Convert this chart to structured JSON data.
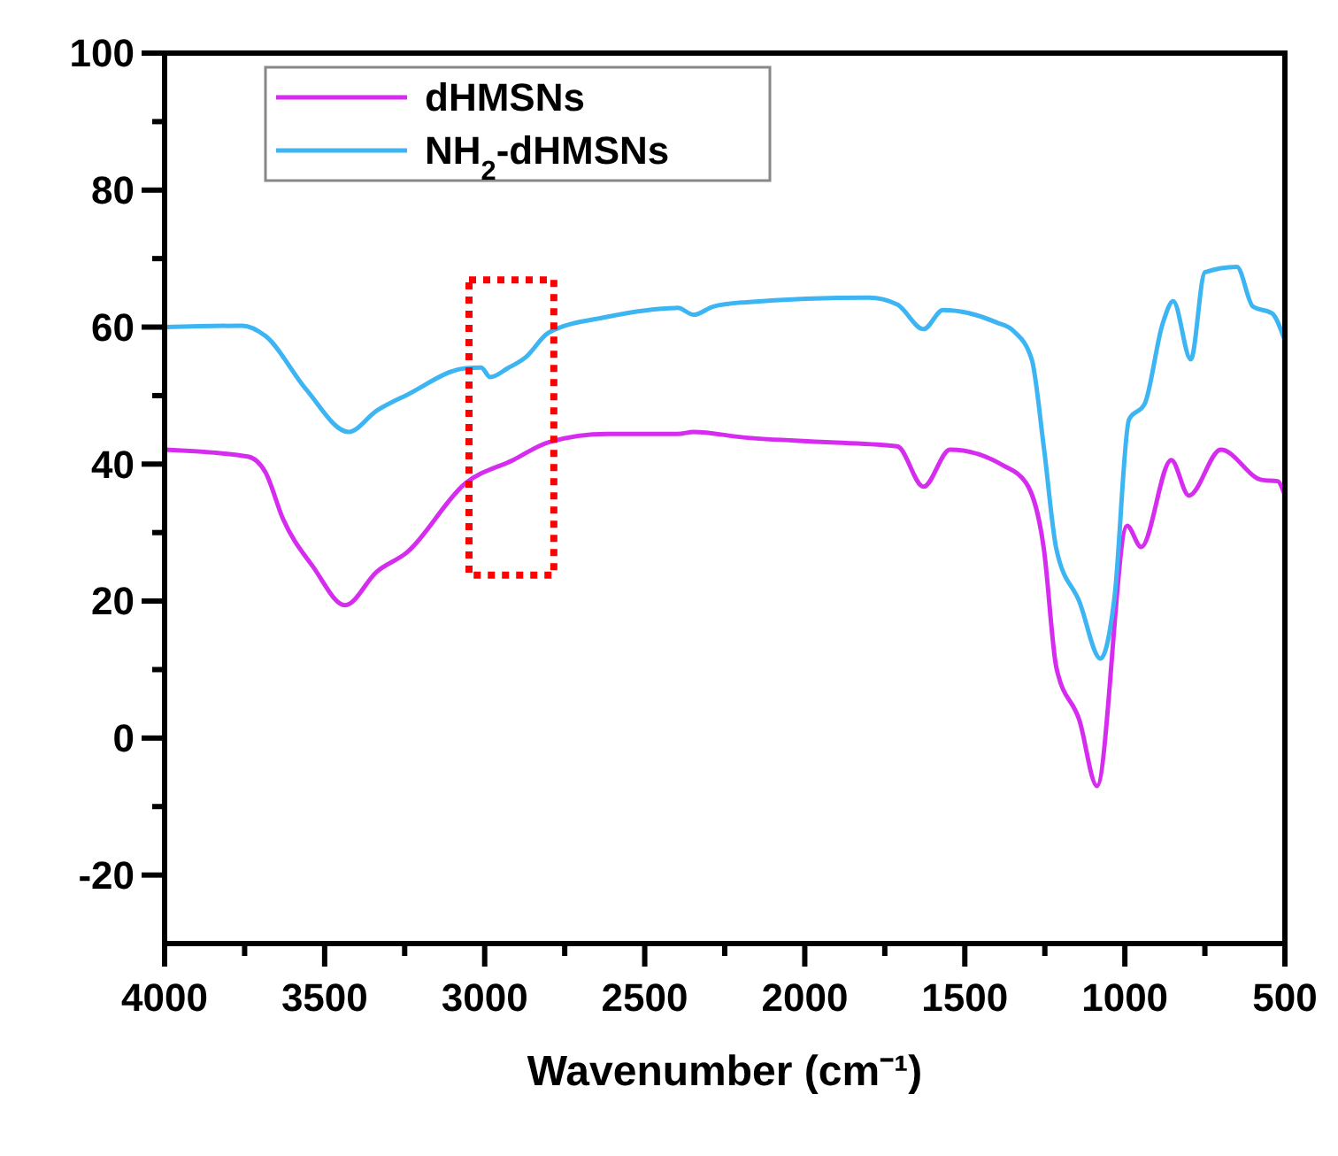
{
  "chart_data": {
    "type": "line",
    "xlabel": "Wavenumber (cm⁻¹)",
    "xlim": [
      4000,
      500
    ],
    "ylim": [
      -30,
      100
    ],
    "xticks": [
      4000,
      {
        "value": 3750,
        "label": null
      },
      3500,
      {
        "value": 3250,
        "label": null
      },
      3000,
      {
        "value": 2750,
        "label": null
      },
      2500,
      {
        "value": 2250,
        "label": null
      },
      2000,
      {
        "value": 1750,
        "label": null
      },
      1500,
      {
        "value": 1250,
        "label": null
      },
      1000,
      {
        "value": 750,
        "label": null
      },
      500
    ],
    "yticks": [
      {
        "value": -10,
        "label": null
      },
      -20,
      0,
      {
        "value": 10,
        "label": null
      },
      20,
      {
        "value": 30,
        "label": null
      },
      40,
      {
        "value": 50,
        "label": null
      },
      60,
      {
        "value": 70,
        "label": null
      },
      80,
      {
        "value": 90,
        "label": null
      },
      100
    ],
    "grid": false,
    "legend": "top left",
    "marker": "none",
    "line_style": "solid",
    "series": [
      {
        "name": "dHMSNs",
        "color": "#d62cf0",
        "x": [
          4000,
          3740,
          3685,
          3630,
          3536,
          3436,
          3337,
          3243,
          3060,
          2911,
          2800,
          2618,
          2397,
          2347,
          2192,
          1933,
          1711,
          1629,
          1546,
          1380,
          1308,
          1253,
          1214,
          1142,
          1087,
          993,
          949,
          855,
          800,
          700,
          573,
          523,
          500
        ],
        "values": [
          42.1,
          41.1,
          38.8,
          32,
          25,
          19.4,
          24.3,
          27.1,
          37.2,
          40.6,
          43.2,
          44.4,
          44.4,
          44.7,
          43.9,
          43.2,
          42.6,
          36.7,
          42.1,
          39.8,
          37.2,
          27.6,
          10.3,
          2.6,
          -7,
          31,
          27.9,
          40.6,
          35.4,
          42.1,
          37.7,
          37.5,
          35.4
        ]
      },
      {
        "name": "NH$_{2}$-dHMSNs",
        "color": "#3db5f2",
        "x": [
          4000,
          3757,
          3685,
          3558,
          3425,
          3337,
          3243,
          3060,
          3011,
          2983,
          2928,
          2872,
          2800,
          2618,
          2397,
          2347,
          2286,
          2192,
          1800,
          1711,
          1629,
          1568,
          1402,
          1347,
          1291,
          1253,
          1214,
          1142,
          1076,
          1032,
          987,
          938,
          882,
          849,
          794,
          750,
          650,
          600,
          540,
          500
        ],
        "values": [
          60,
          60.2,
          58.7,
          50.9,
          44.7,
          47.8,
          50.1,
          54,
          54.1,
          52.7,
          54,
          55.6,
          59.2,
          61.5,
          62.8,
          61.8,
          63,
          63.6,
          64.3,
          63.3,
          59.7,
          62.5,
          60.7,
          59.4,
          55.3,
          42.4,
          27.6,
          19.9,
          11.6,
          20.7,
          46.5,
          48.8,
          60.5,
          63.8,
          55.3,
          68,
          68.8,
          63,
          62,
          58
        ]
      }
    ]
  }
}
